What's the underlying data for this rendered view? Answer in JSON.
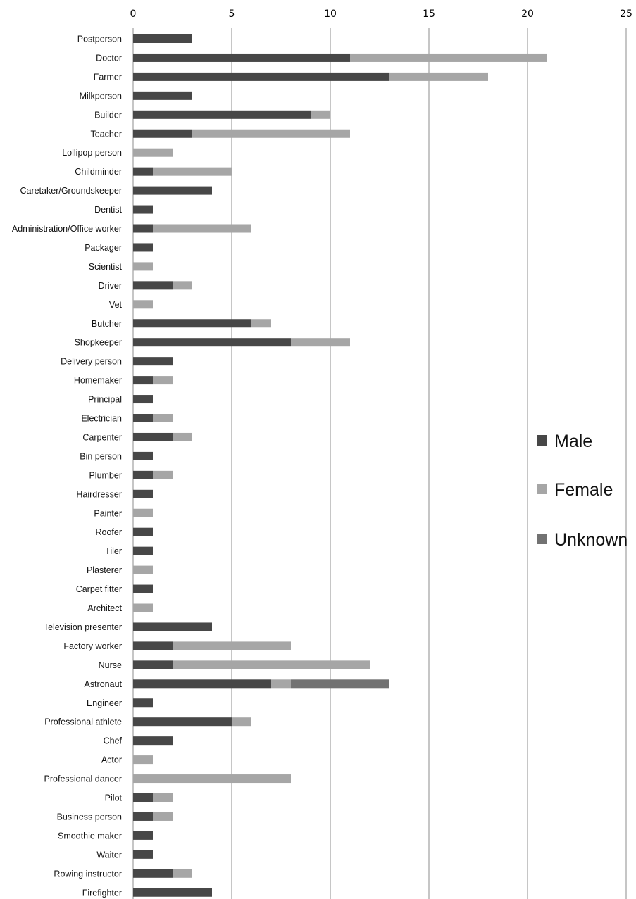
{
  "chart_data": {
    "type": "bar",
    "orientation": "horizontal",
    "stacked": true,
    "xlim": [
      0,
      25
    ],
    "xticks": [
      0,
      5,
      10,
      15,
      20,
      25
    ],
    "x_axis_position": "top",
    "grid": true,
    "legend_position": "right",
    "categories": [
      "Postperson",
      "Doctor",
      "Farmer",
      "Milkperson",
      "Builder",
      "Teacher",
      "Lollipop person",
      "Childminder",
      "Caretaker/Groundskeeper",
      "Dentist",
      "Administration/Office worker",
      "Packager",
      "Scientist",
      "Driver",
      "Vet",
      "Butcher",
      "Shopkeeper",
      "Delivery person",
      "Homemaker",
      "Principal",
      "Electrician",
      "Carpenter",
      "Bin person",
      "Plumber",
      "Hairdresser",
      "Painter",
      "Roofer",
      "Tiler",
      "Plasterer",
      "Carpet fitter",
      "Architect",
      "Television presenter",
      "Factory worker",
      "Nurse",
      "Astronaut",
      "Engineer",
      "Professional athlete",
      "Chef",
      "Actor",
      "Professional dancer",
      "Pilot",
      "Business person",
      "Smoothie maker",
      "Waiter",
      "Rowing instructor",
      "Firefighter"
    ],
    "series": [
      {
        "name": "Male",
        "color": "#474747",
        "values": [
          3,
          11,
          13,
          3,
          9,
          3,
          0,
          1,
          4,
          1,
          1,
          1,
          0,
          2,
          0,
          6,
          8,
          2,
          1,
          1,
          1,
          2,
          1,
          1,
          1,
          0,
          1,
          1,
          0,
          1,
          0,
          4,
          2,
          2,
          7,
          1,
          5,
          2,
          0,
          0,
          1,
          1,
          1,
          1,
          2,
          4
        ]
      },
      {
        "name": "Female",
        "color": "#a6a6a6",
        "values": [
          0,
          10,
          5,
          0,
          1,
          8,
          2,
          4,
          0,
          0,
          5,
          0,
          1,
          1,
          1,
          1,
          3,
          0,
          1,
          0,
          1,
          1,
          0,
          1,
          0,
          1,
          0,
          0,
          1,
          0,
          1,
          0,
          6,
          10,
          1,
          0,
          1,
          0,
          1,
          8,
          1,
          1,
          0,
          0,
          1,
          0
        ]
      },
      {
        "name": "Unknown",
        "color": "#727272",
        "values": [
          0,
          0,
          0,
          0,
          0,
          0,
          0,
          0,
          0,
          0,
          0,
          0,
          0,
          0,
          0,
          0,
          0,
          0,
          0,
          0,
          0,
          0,
          0,
          0,
          0,
          0,
          0,
          0,
          0,
          0,
          0,
          0,
          0,
          0,
          5,
          0,
          0,
          0,
          0,
          0,
          0,
          0,
          0,
          0,
          0,
          0
        ]
      }
    ]
  }
}
